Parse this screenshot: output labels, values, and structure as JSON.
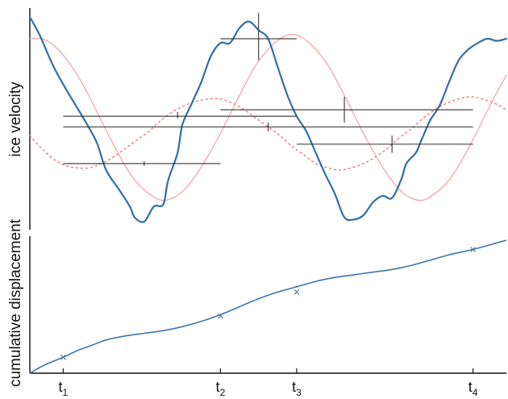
{
  "chart_data": [
    {
      "type": "line",
      "ylabel": "ice velocity",
      "xlim": [
        0,
        1
      ],
      "ylim": [
        0,
        1
      ],
      "grid": false,
      "legend": "none",
      "colors": {
        "observed": "#2f6fa8",
        "model": "#f4a5a5",
        "model_dotted": "#e8797f",
        "segments": "#333333"
      },
      "series": [
        {
          "style": "solid-blue",
          "x": [
            0.0,
            0.02,
            0.05,
            0.08,
            0.11,
            0.14,
            0.16,
            0.19,
            0.21,
            0.22,
            0.24,
            0.26,
            0.28,
            0.29,
            0.31,
            0.32,
            0.34,
            0.36,
            0.38,
            0.4,
            0.42,
            0.44,
            0.46,
            0.48,
            0.5,
            0.52,
            0.54,
            0.56,
            0.58,
            0.6,
            0.62,
            0.64,
            0.66,
            0.68,
            0.7,
            0.72,
            0.74,
            0.76,
            0.78,
            0.79,
            0.81,
            0.82,
            0.84,
            0.86,
            0.88,
            0.9,
            0.92,
            0.94,
            0.96,
            0.98,
            1.0
          ],
          "y": [
            0.98,
            0.9,
            0.75,
            0.63,
            0.52,
            0.4,
            0.27,
            0.17,
            0.1,
            0.05,
            0.03,
            0.1,
            0.11,
            0.22,
            0.35,
            0.48,
            0.58,
            0.68,
            0.8,
            0.86,
            0.86,
            0.93,
            0.96,
            0.92,
            0.88,
            0.75,
            0.62,
            0.52,
            0.45,
            0.35,
            0.25,
            0.16,
            0.05,
            0.04,
            0.06,
            0.12,
            0.15,
            0.14,
            0.23,
            0.3,
            0.35,
            0.4,
            0.5,
            0.57,
            0.68,
            0.78,
            0.83,
            0.86,
            0.88,
            0.87,
            0.88
          ]
        },
        {
          "style": "thin-pink",
          "x": [
            0.0,
            0.025,
            0.05,
            0.075,
            0.1,
            0.125,
            0.15,
            0.175,
            0.2,
            0.225,
            0.25,
            0.275,
            0.3,
            0.325,
            0.35,
            0.375,
            0.4,
            0.425,
            0.45,
            0.475,
            0.5,
            0.525,
            0.55,
            0.575,
            0.6,
            0.625,
            0.65,
            0.675,
            0.7,
            0.725,
            0.75,
            0.775,
            0.8,
            0.825,
            0.85,
            0.875,
            0.9,
            0.925,
            0.95,
            0.975,
            1.0
          ],
          "y": [
            0.88,
            0.88,
            0.85,
            0.79,
            0.71,
            0.61,
            0.5,
            0.39,
            0.29,
            0.21,
            0.16,
            0.13,
            0.14,
            0.18,
            0.25,
            0.34,
            0.44,
            0.55,
            0.66,
            0.76,
            0.83,
            0.88,
            0.9,
            0.88,
            0.83,
            0.76,
            0.66,
            0.55,
            0.44,
            0.34,
            0.25,
            0.18,
            0.14,
            0.13,
            0.16,
            0.21,
            0.29,
            0.39,
            0.5,
            0.61,
            0.71
          ]
        },
        {
          "style": "dotted-pink",
          "x": [
            0.0,
            0.025,
            0.05,
            0.075,
            0.1,
            0.125,
            0.15,
            0.175,
            0.2,
            0.225,
            0.25,
            0.275,
            0.3,
            0.325,
            0.35,
            0.375,
            0.4,
            0.425,
            0.45,
            0.475,
            0.5,
            0.525,
            0.55,
            0.575,
            0.6,
            0.625,
            0.65,
            0.675,
            0.7,
            0.725,
            0.75,
            0.775,
            0.8,
            0.825,
            0.85,
            0.875,
            0.9,
            0.925,
            0.95,
            0.975,
            1.0
          ],
          "y": [
            0.43,
            0.37,
            0.32,
            0.29,
            0.28,
            0.28,
            0.3,
            0.33,
            0.37,
            0.41,
            0.45,
            0.5,
            0.54,
            0.57,
            0.59,
            0.6,
            0.6,
            0.58,
            0.55,
            0.51,
            0.47,
            0.43,
            0.38,
            0.34,
            0.3,
            0.28,
            0.27,
            0.28,
            0.3,
            0.33,
            0.37,
            0.42,
            0.46,
            0.51,
            0.55,
            0.58,
            0.6,
            0.61,
            0.6,
            0.58,
            0.55
          ]
        }
      ],
      "segments": [
        {
          "x0": 0.07,
          "x1": 0.4,
          "y": 0.3,
          "ex": 0.24,
          "elo": 0.29,
          "ehi": 0.31
        },
        {
          "x0": 0.07,
          "x1": 0.56,
          "y": 0.52,
          "ex": 0.31,
          "elo": 0.51,
          "ehi": 0.54
        },
        {
          "x0": 0.07,
          "x1": 0.93,
          "y": 0.47,
          "ex": 0.5,
          "elo": 0.45,
          "ehi": 0.49
        },
        {
          "x0": 0.4,
          "x1": 0.56,
          "y": 0.88,
          "ex": 0.48,
          "elo": 0.78,
          "ehi": 1.0
        },
        {
          "x0": 0.4,
          "x1": 0.93,
          "y": 0.55,
          "ex": 0.66,
          "elo": 0.49,
          "ehi": 0.61
        },
        {
          "x0": 0.56,
          "x1": 0.93,
          "y": 0.39,
          "ex": 0.76,
          "elo": 0.35,
          "ehi": 0.43
        }
      ]
    },
    {
      "type": "line",
      "ylabel": "cumulative displacement",
      "xlim": [
        0,
        1
      ],
      "ylim": [
        0,
        1
      ],
      "grid": false,
      "legend": "none",
      "colors": {
        "line": "#3a76ad",
        "markers": "#5a7f9e"
      },
      "series": [
        {
          "x": [
            0.0,
            0.03,
            0.07,
            0.1,
            0.13,
            0.16,
            0.2,
            0.24,
            0.28,
            0.32,
            0.36,
            0.4,
            0.44,
            0.48,
            0.52,
            0.56,
            0.6,
            0.64,
            0.68,
            0.72,
            0.76,
            0.8,
            0.84,
            0.88,
            0.93,
            0.97,
            1.0
          ],
          "y": [
            0.0,
            0.06,
            0.12,
            0.17,
            0.21,
            0.25,
            0.28,
            0.3,
            0.32,
            0.35,
            0.39,
            0.44,
            0.5,
            0.56,
            0.61,
            0.65,
            0.69,
            0.72,
            0.74,
            0.76,
            0.78,
            0.81,
            0.85,
            0.89,
            0.93,
            0.97,
            1.0
          ]
        }
      ],
      "markers": [
        {
          "x": 0.07,
          "y": 0.12
        },
        {
          "x": 0.4,
          "y": 0.43
        },
        {
          "x": 0.56,
          "y": 0.61
        },
        {
          "x": 0.93,
          "y": 0.93
        }
      ],
      "x_ticks": [
        {
          "x": 0.07,
          "base": "t",
          "sub": "1"
        },
        {
          "x": 0.4,
          "base": "t",
          "sub": "2"
        },
        {
          "x": 0.56,
          "base": "t",
          "sub": "3"
        },
        {
          "x": 0.93,
          "base": "t",
          "sub": "4"
        }
      ]
    }
  ]
}
